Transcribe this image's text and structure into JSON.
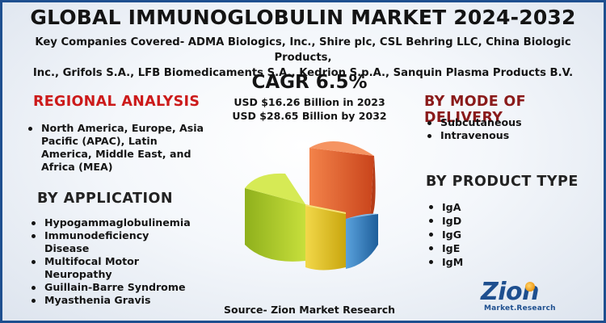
{
  "title": "GLOBAL IMMUNOGLOBULIN MARKET 2024-2032",
  "companies": {
    "line1": "Key Companies Covered- ADMA Biologics, Inc., Shire plc, CSL Behring LLC, China Biologic Products,",
    "line2": "Inc., Grifols S.A., LFB Biomedicaments S.A., Kedrion S.p.A., Sanquin Plasma Products B.V."
  },
  "cagr": "CAGR 6.5%",
  "market_2023": "USD $16.26 Billion in 2023",
  "market_2032": "USD $28.65 Billion by 2032",
  "regional": {
    "heading": "REGIONAL ANALYSIS",
    "items": [
      "North America, Europe, Asia Pacific (APAC), Latin America, Middle East, and Africa (MEA)"
    ]
  },
  "application": {
    "heading": "BY  APPLICATION",
    "items": [
      "Hypogammaglobulinemia",
      "Immunodeficiency Disease",
      "Multifocal Motor Neuropathy",
      "Guillain-Barre Syndrome",
      "Myasthenia Gravis"
    ]
  },
  "delivery": {
    "heading": "BY MODE OF DELIVERY",
    "items": [
      "Subcutaneous",
      "Intravenous"
    ]
  },
  "product": {
    "heading": "BY  PRODUCT TYPE",
    "items": [
      "IgA",
      "IgD",
      "IgG",
      "IgE",
      "IgM"
    ]
  },
  "source": "Source- Zion Market Research",
  "logo": {
    "main": "Zion",
    "sub": "Market.Research"
  },
  "colors": {
    "accent_red": "#cc1a1a",
    "brand_blue": "#1e4f8f",
    "slice_orange": "#e8622a",
    "slice_green": "#b8d22a",
    "slice_yellow": "#e8c81e",
    "slice_blue": "#2f7fc0"
  }
}
